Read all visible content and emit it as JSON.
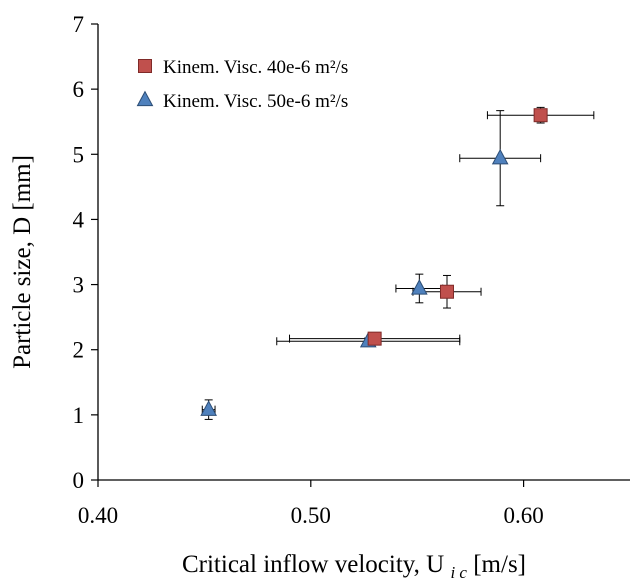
{
  "chart_data": {
    "type": "scatter",
    "title": "",
    "xlabel": "Critical inflow velocity, U",
    "xlabel_sub": "i c",
    "xlabel_unit": "[m/s]",
    "ylabel": "Particle size, D  [mm]",
    "xlim": [
      0.4,
      0.65
    ],
    "ylim": [
      0,
      7
    ],
    "xticks": [
      0.4,
      0.5,
      0.6
    ],
    "xtick_labels": [
      "0.40",
      "0.50",
      "0.60"
    ],
    "yticks": [
      0,
      1,
      2,
      3,
      4,
      5,
      6,
      7
    ],
    "ytick_labels": [
      "0",
      "1",
      "2",
      "3",
      "4",
      "5",
      "6",
      "7"
    ],
    "grid": false,
    "legend_position": "top-left",
    "error_bars": true,
    "series": [
      {
        "name": "Kinem. Visc. 40e-6 m²/s",
        "marker": "square",
        "color": "#c0504d",
        "edge_color": "#7f2a28",
        "points": [
          {
            "x": 0.53,
            "y": 2.17,
            "xerr": 0.04,
            "yerr": 0.05
          },
          {
            "x": 0.564,
            "y": 2.89,
            "xerr": 0.016,
            "yerr": 0.25
          },
          {
            "x": 0.608,
            "y": 5.6,
            "xerr": 0.025,
            "yerr": 0.12
          }
        ]
      },
      {
        "name": "Kinem. Visc. 50e-6 m²/s",
        "marker": "triangle",
        "color": "#4f81bd",
        "edge_color": "#2c4d75",
        "points": [
          {
            "x": 0.452,
            "y": 1.08,
            "xerr": 0.003,
            "yerr": 0.15
          },
          {
            "x": 0.527,
            "y": 2.13,
            "xerr": 0.043,
            "yerr": 0.05
          },
          {
            "x": 0.551,
            "y": 2.94,
            "xerr": 0.011,
            "yerr": 0.22
          },
          {
            "x": 0.589,
            "y": 4.94,
            "xerr": 0.019,
            "yerr": 0.73
          }
        ]
      }
    ]
  }
}
